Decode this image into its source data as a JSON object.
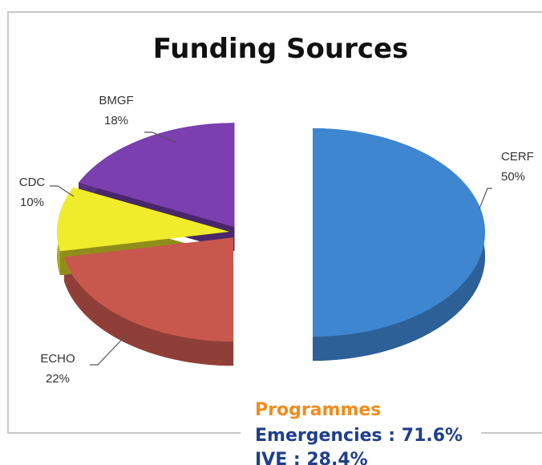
{
  "chart_data": {
    "type": "pie",
    "title": "Funding Sources",
    "categories": [
      "CERF",
      "ECHO",
      "CDC",
      "BMGF"
    ],
    "values": [
      50,
      22,
      10,
      18
    ],
    "value_labels": [
      "50%",
      "22%",
      "10%",
      "18%"
    ],
    "colors": [
      "#3f86d0",
      "#c8574e",
      "#f0ec2c",
      "#7b3fb0"
    ],
    "annotations": {
      "heading": "Programmes",
      "lines": [
        "Emergencies : 71.6%",
        "IVE : 28.4%"
      ]
    }
  }
}
